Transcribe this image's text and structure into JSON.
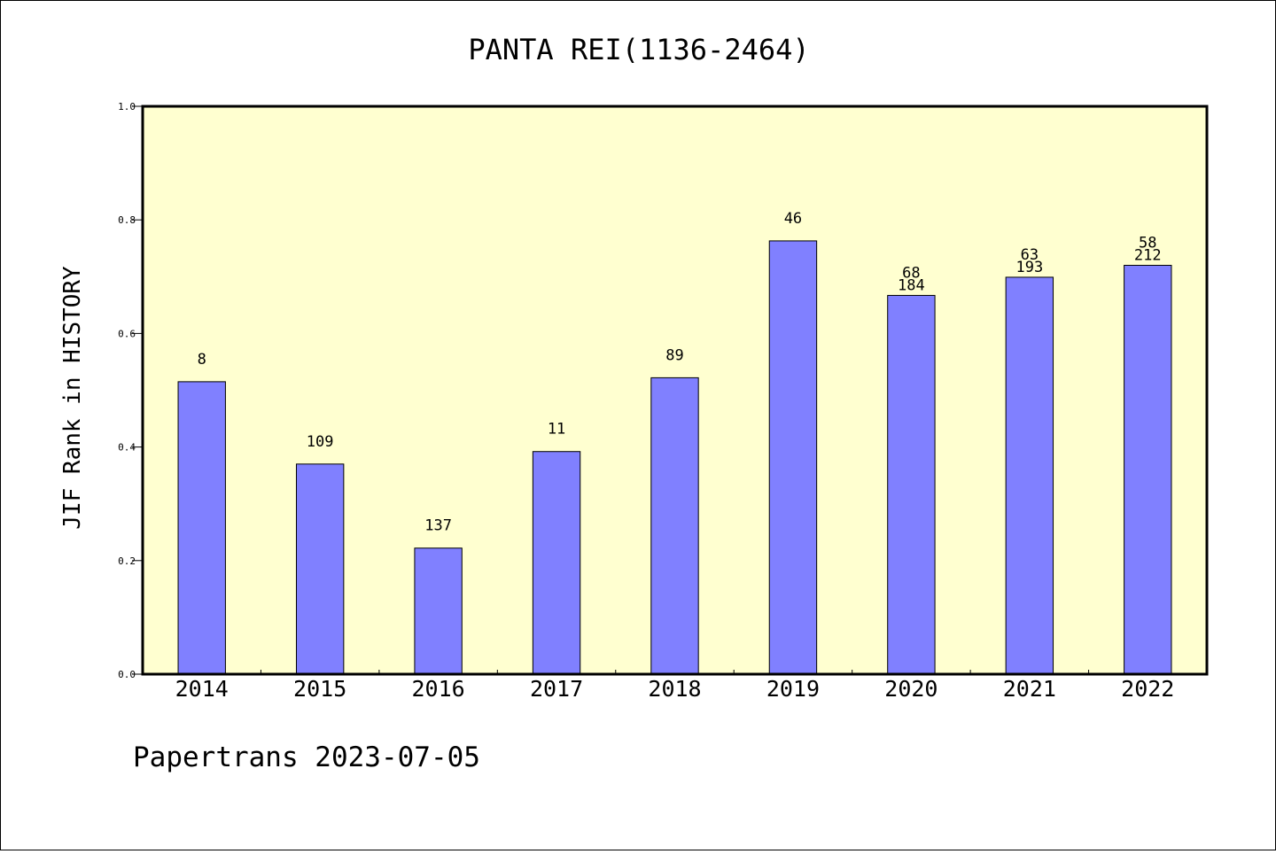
{
  "chart_data": {
    "type": "bar",
    "title": "PANTA REI(1136-2464)",
    "ylabel": "JIF Rank in HISTORY",
    "xlabel": "",
    "categories": [
      "2014",
      "2015",
      "2016",
      "2017",
      "2018",
      "2019",
      "2020",
      "2021",
      "2022"
    ],
    "values": [
      0.515,
      0.37,
      0.222,
      0.392,
      0.522,
      0.763,
      0.667,
      0.699,
      0.72
    ],
    "labels": [
      [
        "8"
      ],
      [
        "109"
      ],
      [
        "137"
      ],
      [
        "11"
      ],
      [
        "89"
      ],
      [
        "46"
      ],
      [
        "68",
        "184"
      ],
      [
        "63",
        "193"
      ],
      [
        "58",
        "212"
      ]
    ],
    "ylim": [
      0,
      1.0
    ],
    "yticks": [
      "0.0",
      "0.2",
      "0.4",
      "0.6",
      "0.8",
      "1.0"
    ],
    "grid": false,
    "colors": {
      "plot_background": "#ffffd0",
      "bar_fill": "#8080ff",
      "bar_stroke": "#000000"
    }
  },
  "footer": "Papertrans 2023-07-05"
}
